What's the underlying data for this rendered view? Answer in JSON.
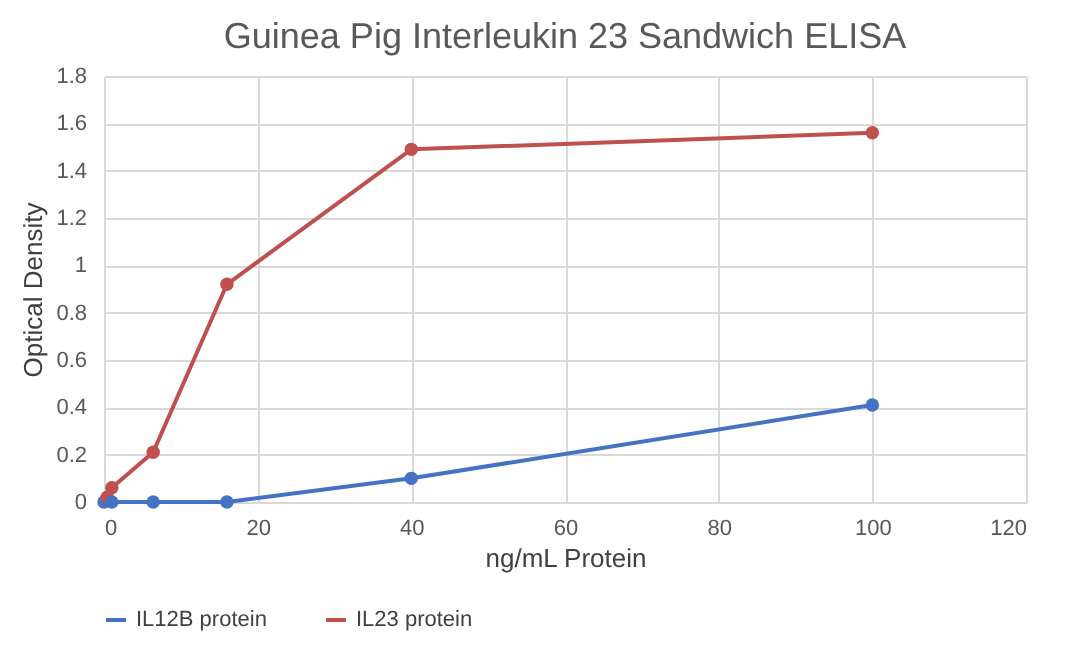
{
  "chart_data": {
    "type": "line",
    "title": "Guinea Pig Interleukin 23 Sandwich ELISA",
    "xlabel": "ng/mL Protein",
    "ylabel": "Optical Density",
    "xlim": [
      0,
      120
    ],
    "xticks": [
      0,
      20,
      40,
      60,
      80,
      100,
      120
    ],
    "ylim": [
      0,
      1.8
    ],
    "yticks": [
      0,
      0.2,
      0.4,
      0.6,
      0.8,
      1,
      1.2,
      1.4,
      1.6,
      1.8
    ],
    "grid": true,
    "legend": "bottom",
    "marker": "circle",
    "line_style": "solid",
    "series": [
      {
        "name": "IL12B protein",
        "color": "#4472c4",
        "x": [
          0,
          1.02,
          6.4,
          16,
          40,
          100
        ],
        "values": [
          0,
          0,
          0,
          0,
          0.1,
          0.41
        ]
      },
      {
        "name": "IL23 protein",
        "color": "#c0504d",
        "x": [
          0.41,
          1.02,
          6.4,
          16,
          40,
          100
        ],
        "values": [
          0.02,
          0.06,
          0.21,
          0.92,
          1.49,
          1.56
        ]
      }
    ]
  }
}
